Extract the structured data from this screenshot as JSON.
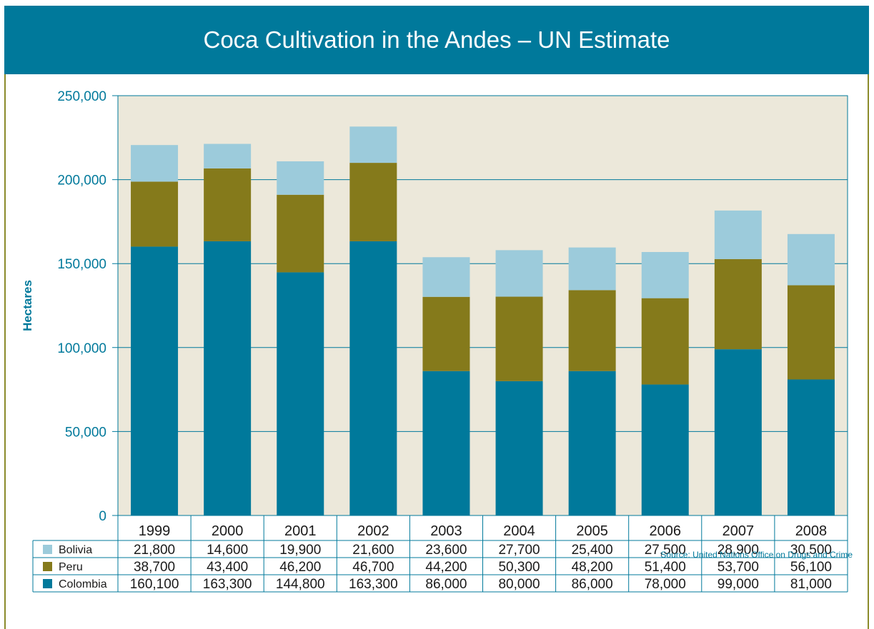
{
  "title": "Coca Cultivation in the Andes – UN Estimate",
  "source": "Source: United Nations Office on Drugs and Crime",
  "colors": {
    "title_bg": "#00799b",
    "plot_bg": "#ece8da",
    "axis": "#00799b",
    "frame": "#8a8a2a"
  },
  "chart_data": {
    "type": "bar",
    "stacked": true,
    "title": "",
    "ylabel": "Hectares",
    "xlabel": "",
    "ylim": [
      0,
      250000
    ],
    "yticks": [
      0,
      50000,
      100000,
      150000,
      200000,
      250000
    ],
    "ytick_labels": [
      "0",
      "50,000",
      "100,000",
      "150,000",
      "200,000",
      "250,000"
    ],
    "grid": true,
    "legend": "table-left",
    "categories": [
      "1999",
      "2000",
      "2001",
      "2002",
      "2003",
      "2004",
      "2005",
      "2006",
      "2007",
      "2008"
    ],
    "series": [
      {
        "name": "Colombia",
        "color": "#00799b",
        "values": [
          160100,
          163300,
          144800,
          163300,
          86000,
          80000,
          86000,
          78000,
          99000,
          81000
        ],
        "labels": [
          "160,100",
          "163,300",
          "144,800",
          "163,300",
          "86,000",
          "80,000",
          "86,000",
          "78,000",
          "99,000",
          "81,000"
        ]
      },
      {
        "name": "Peru",
        "color": "#857a1b",
        "values": [
          38700,
          43400,
          46200,
          46700,
          44200,
          50300,
          48200,
          51400,
          53700,
          56100
        ],
        "labels": [
          "38,700",
          "43,400",
          "46,200",
          "46,700",
          "44,200",
          "50,300",
          "48,200",
          "51,400",
          "53,700",
          "56,100"
        ]
      },
      {
        "name": "Bolivia",
        "color": "#9ccbdb",
        "values": [
          21800,
          14600,
          19900,
          21600,
          23600,
          27700,
          25400,
          27500,
          28900,
          30500
        ],
        "labels": [
          "21,800",
          "14,600",
          "19,900",
          "21,600",
          "23,600",
          "27,700",
          "25,400",
          "27,500",
          "28,900",
          "30,500"
        ]
      }
    ],
    "table_row_order": [
      "Bolivia",
      "Peru",
      "Colombia"
    ]
  }
}
